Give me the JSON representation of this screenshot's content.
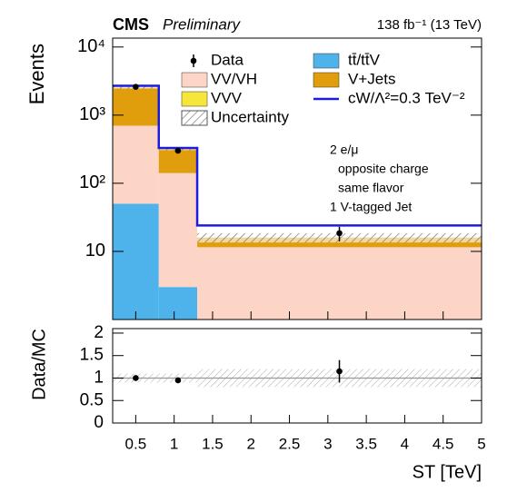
{
  "chart_data": [
    {
      "type": "stacked_histogram",
      "experiment": "CMS",
      "status": "Preliminary",
      "lumi": "138 fb⁻¹ (13 TeV)",
      "ylabel": "Events",
      "bins": [
        0.2,
        0.8,
        1.3,
        5
      ],
      "xlim": [
        0.2,
        5
      ],
      "ylim": [
        1,
        13500
      ],
      "log": true,
      "yticks": [
        10,
        {
          "value": 100,
          "label": "10²"
        },
        {
          "value": 1000,
          "label": "10³"
        },
        {
          "value": 10000,
          "label": "10⁴"
        }
      ],
      "series": [
        {
          "name": "tt̄/tt̄V",
          "color": "#4db3ea",
          "values": [
            50,
            3,
            0
          ]
        },
        {
          "name": "VV/VH",
          "color": "#fdd5c6",
          "values": [
            650,
            138,
            11.5
          ]
        },
        {
          "name": "VVV",
          "color": "#f7e63a",
          "values": [
            0,
            0,
            0
          ]
        },
        {
          "name": "V+Jets",
          "color": "#e09e0c",
          "values": [
            1850,
            180,
            4.5
          ]
        }
      ],
      "uncertainty": {
        "name": "Uncertainty",
        "values": [
          100,
          15,
          2.5
        ]
      },
      "signal": {
        "name": "cW/Λ²=0.3 TeV⁻²",
        "color": "#1c1ce0",
        "values": [
          2700,
          330,
          24
        ]
      },
      "data": {
        "name": "Data",
        "x": [
          0.5,
          1.05,
          3.15
        ],
        "values": [
          2600,
          300,
          18.5
        ],
        "errors": [
          50,
          17,
          4.5
        ]
      },
      "annotations": [
        "2 e/μ",
        "opposite charge",
        "same flavor",
        "1 V-tagged Jet"
      ]
    },
    {
      "type": "ratio",
      "ylabel": "Data/MC",
      "xlabel": "ST [TeV]",
      "bins": [
        0.2,
        0.8,
        1.3,
        5
      ],
      "xlim": [
        0.2,
        5
      ],
      "xticks": [
        0.5,
        1,
        1.5,
        2,
        2.5,
        3,
        3.5,
        4,
        4.5,
        5
      ],
      "ylim": [
        0,
        2.1
      ],
      "yticks": [
        0,
        0.5,
        1,
        1.5,
        2
      ],
      "reference": 1,
      "x": [
        0.5,
        1.05,
        3.15
      ],
      "values": [
        1,
        0.95,
        1.15
      ],
      "errors": [
        0.03,
        0.06,
        0.25
      ],
      "uncertainty": [
        0.1,
        0.1,
        0.2
      ]
    }
  ]
}
